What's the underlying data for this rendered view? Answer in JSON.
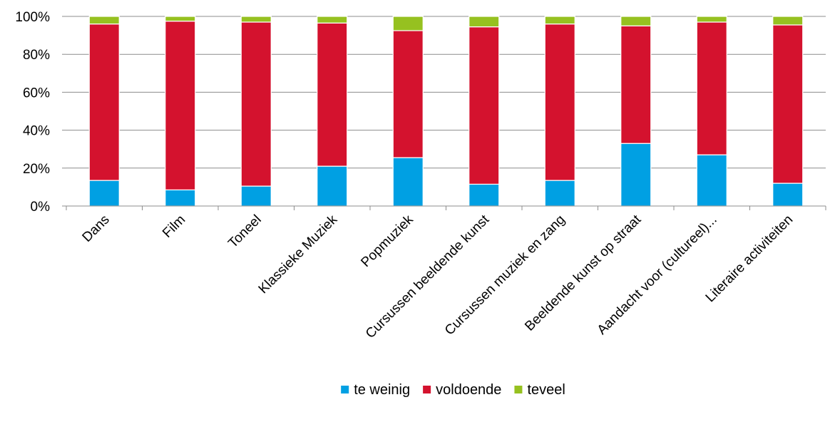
{
  "chart_data": {
    "type": "bar",
    "stacked": true,
    "title": "",
    "xlabel": "",
    "ylabel": "",
    "ylim": [
      0,
      100
    ],
    "y_ticks": [
      "0%",
      "20%",
      "40%",
      "60%",
      "80%",
      "100%"
    ],
    "grid": true,
    "legend_position": "bottom",
    "categories": [
      "Dans",
      "Film",
      "Toneel",
      "Klassieke Muziek",
      "Popmuziek",
      "Cursussen beeldende kunst",
      "Cursussen muziek en zang",
      "Beeldende kunst op straat",
      "Aandacht voor (cultureel)...",
      "Literaire activiteiten"
    ],
    "series": [
      {
        "name": "te weinig",
        "color": "#00A0E3",
        "values": [
          13.5,
          8.5,
          10.5,
          21,
          25.5,
          11.5,
          13.5,
          33,
          27,
          12
        ]
      },
      {
        "name": "voldoende",
        "color": "#D4122E",
        "values": [
          82.5,
          89,
          86.5,
          75.5,
          67,
          83,
          82.5,
          62,
          70,
          83.5
        ]
      },
      {
        "name": "teveel",
        "color": "#96C120",
        "values": [
          4,
          2.5,
          3,
          3.5,
          7.5,
          5.5,
          4,
          5,
          3,
          4.5
        ]
      }
    ]
  }
}
